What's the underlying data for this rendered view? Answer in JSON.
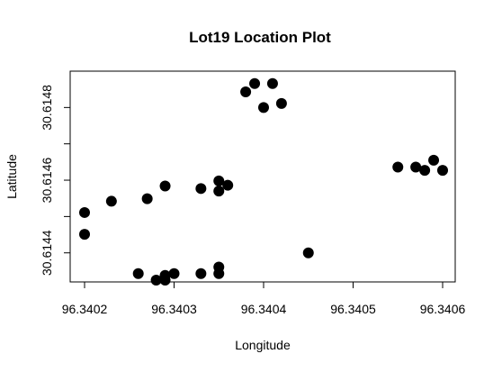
{
  "chart_data": {
    "type": "scatter",
    "title": "Lot19 Location Plot",
    "xlabel": "Longitude",
    "ylabel": "Latitude",
    "xlim": [
      96.3402,
      96.3406
    ],
    "ylim": [
      30.61432,
      30.6149
    ],
    "xticks": [
      {
        "value": 96.3402,
        "label": "96.3402"
      },
      {
        "value": 96.3403,
        "label": "96.3403"
      },
      {
        "value": 96.3404,
        "label": "96.3404"
      },
      {
        "value": 96.3405,
        "label": "96.3405"
      },
      {
        "value": 96.3406,
        "label": "96.3406"
      }
    ],
    "yticks": [
      {
        "value": 30.6144,
        "label": "30.6144"
      },
      {
        "value": 30.6145,
        "label": ""
      },
      {
        "value": 30.6146,
        "label": "30.6146"
      },
      {
        "value": 30.6147,
        "label": ""
      },
      {
        "value": 30.6148,
        "label": "30.6148"
      }
    ],
    "grid": false,
    "points": [
      {
        "x": 96.3402,
        "y": 30.614451
      },
      {
        "x": 96.3402,
        "y": 30.614511
      },
      {
        "x": 96.34023,
        "y": 30.614542
      },
      {
        "x": 96.34026,
        "y": 30.614343
      },
      {
        "x": 96.34027,
        "y": 30.614549
      },
      {
        "x": 96.34028,
        "y": 30.614325
      },
      {
        "x": 96.34029,
        "y": 30.614338
      },
      {
        "x": 96.34029,
        "y": 30.614325
      },
      {
        "x": 96.34029,
        "y": 30.614584
      },
      {
        "x": 96.3403,
        "y": 30.614343
      },
      {
        "x": 96.34033,
        "y": 30.614343
      },
      {
        "x": 96.34033,
        "y": 30.614577
      },
      {
        "x": 96.34035,
        "y": 30.614343
      },
      {
        "x": 96.34035,
        "y": 30.614361
      },
      {
        "x": 96.34035,
        "y": 30.61457
      },
      {
        "x": 96.34035,
        "y": 30.614598
      },
      {
        "x": 96.34036,
        "y": 30.614586
      },
      {
        "x": 96.34038,
        "y": 30.614843
      },
      {
        "x": 96.34039,
        "y": 30.614866
      },
      {
        "x": 96.3404,
        "y": 30.6148
      },
      {
        "x": 96.34041,
        "y": 30.614866
      },
      {
        "x": 96.34042,
        "y": 30.614811
      },
      {
        "x": 96.34045,
        "y": 30.6144
      },
      {
        "x": 96.34055,
        "y": 30.614636
      },
      {
        "x": 96.34057,
        "y": 30.614636
      },
      {
        "x": 96.34058,
        "y": 30.614627
      },
      {
        "x": 96.34059,
        "y": 30.614655
      },
      {
        "x": 96.3406,
        "y": 30.614627
      }
    ]
  }
}
